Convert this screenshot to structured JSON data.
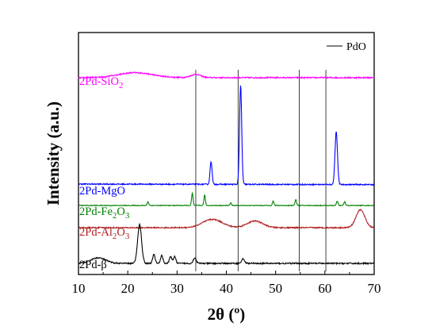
{
  "chart_data": {
    "type": "line",
    "xlabel": "2θ (º)",
    "ylabel": "Intensity (a.u.)",
    "xlim": [
      10,
      70
    ],
    "xticks": [
      10,
      20,
      30,
      40,
      50,
      60,
      70
    ],
    "y_ticks_shown": false,
    "grid": false,
    "legend": {
      "position": "top-right",
      "entries": [
        {
          "name": "PdO",
          "color": "#000000",
          "style": "line"
        }
      ]
    },
    "reference_lines": {
      "name": "PdO",
      "x": [
        33.8,
        42.4,
        54.8,
        60.2
      ],
      "color": "#404040"
    },
    "series": [
      {
        "name": "2Pd-SiO2",
        "label_main": "2Pd-SiO",
        "label_sub": "2",
        "label_after": "",
        "color": "#ff00ff",
        "baseline": 0.06,
        "humps": [
          {
            "c": 21.5,
            "w": 3.5,
            "h": 0.12
          },
          {
            "c": 33.8,
            "w": 1.0,
            "h": 0.08
          }
        ],
        "peaks": [],
        "noise": 0.015
      },
      {
        "name": "2Pd-MgO",
        "label_main": "2Pd-MgO",
        "label_sub": "",
        "label_after": "",
        "color": "#0000ff",
        "baseline": 0.0,
        "slope": -0.004,
        "humps": [],
        "peaks": [
          {
            "c": 36.9,
            "w": 0.2,
            "h": 1.0
          },
          {
            "c": 42.9,
            "w": 0.22,
            "h": 4.3
          },
          {
            "c": 62.3,
            "w": 0.25,
            "h": 2.3
          }
        ],
        "noise": 0.025
      },
      {
        "name": "2Pd-Fe2O3",
        "label_main": "2Pd-Fe",
        "label_sub": "2",
        "label_after": "O",
        "label_sub2": "3",
        "color": "#008000",
        "baseline": 0.0,
        "humps": [],
        "peaks": [
          {
            "c": 24.1,
            "w": 0.15,
            "h": 0.22
          },
          {
            "c": 33.1,
            "w": 0.15,
            "h": 0.7
          },
          {
            "c": 35.6,
            "w": 0.15,
            "h": 0.6
          },
          {
            "c": 40.9,
            "w": 0.15,
            "h": 0.15
          },
          {
            "c": 49.5,
            "w": 0.15,
            "h": 0.25
          },
          {
            "c": 54.1,
            "w": 0.15,
            "h": 0.35
          },
          {
            "c": 62.5,
            "w": 0.15,
            "h": 0.25
          },
          {
            "c": 64.0,
            "w": 0.15,
            "h": 0.22
          }
        ],
        "noise": 0.02
      },
      {
        "name": "2Pd-Al2O3",
        "label_main": "2Pd-Al",
        "label_sub": "2",
        "label_after": "O",
        "label_sub2": "3",
        "color": "#b02020",
        "baseline": 0.0,
        "humps": [
          {
            "c": 37.2,
            "w": 2.0,
            "h": 0.35
          },
          {
            "c": 45.8,
            "w": 1.6,
            "h": 0.28
          },
          {
            "c": 67.2,
            "w": 0.9,
            "h": 0.75
          }
        ],
        "peaks": [],
        "noise": 0.025
      },
      {
        "name": "2Pd-β",
        "label_main": "2Pd-β",
        "label_sub": "",
        "label_after": "",
        "color": "#000000",
        "baseline": 0.0,
        "humps": [
          {
            "c": 14.0,
            "w": 1.5,
            "h": 0.25
          }
        ],
        "peaks": [
          {
            "c": 22.4,
            "w": 0.4,
            "h": 1.75
          },
          {
            "c": 25.3,
            "w": 0.25,
            "h": 0.4
          },
          {
            "c": 26.9,
            "w": 0.25,
            "h": 0.35
          },
          {
            "c": 28.7,
            "w": 0.25,
            "h": 0.3
          },
          {
            "c": 29.5,
            "w": 0.25,
            "h": 0.3
          },
          {
            "c": 33.6,
            "w": 0.3,
            "h": 0.25
          },
          {
            "c": 43.4,
            "w": 0.3,
            "h": 0.2
          }
        ],
        "noise": 0.03
      }
    ]
  }
}
